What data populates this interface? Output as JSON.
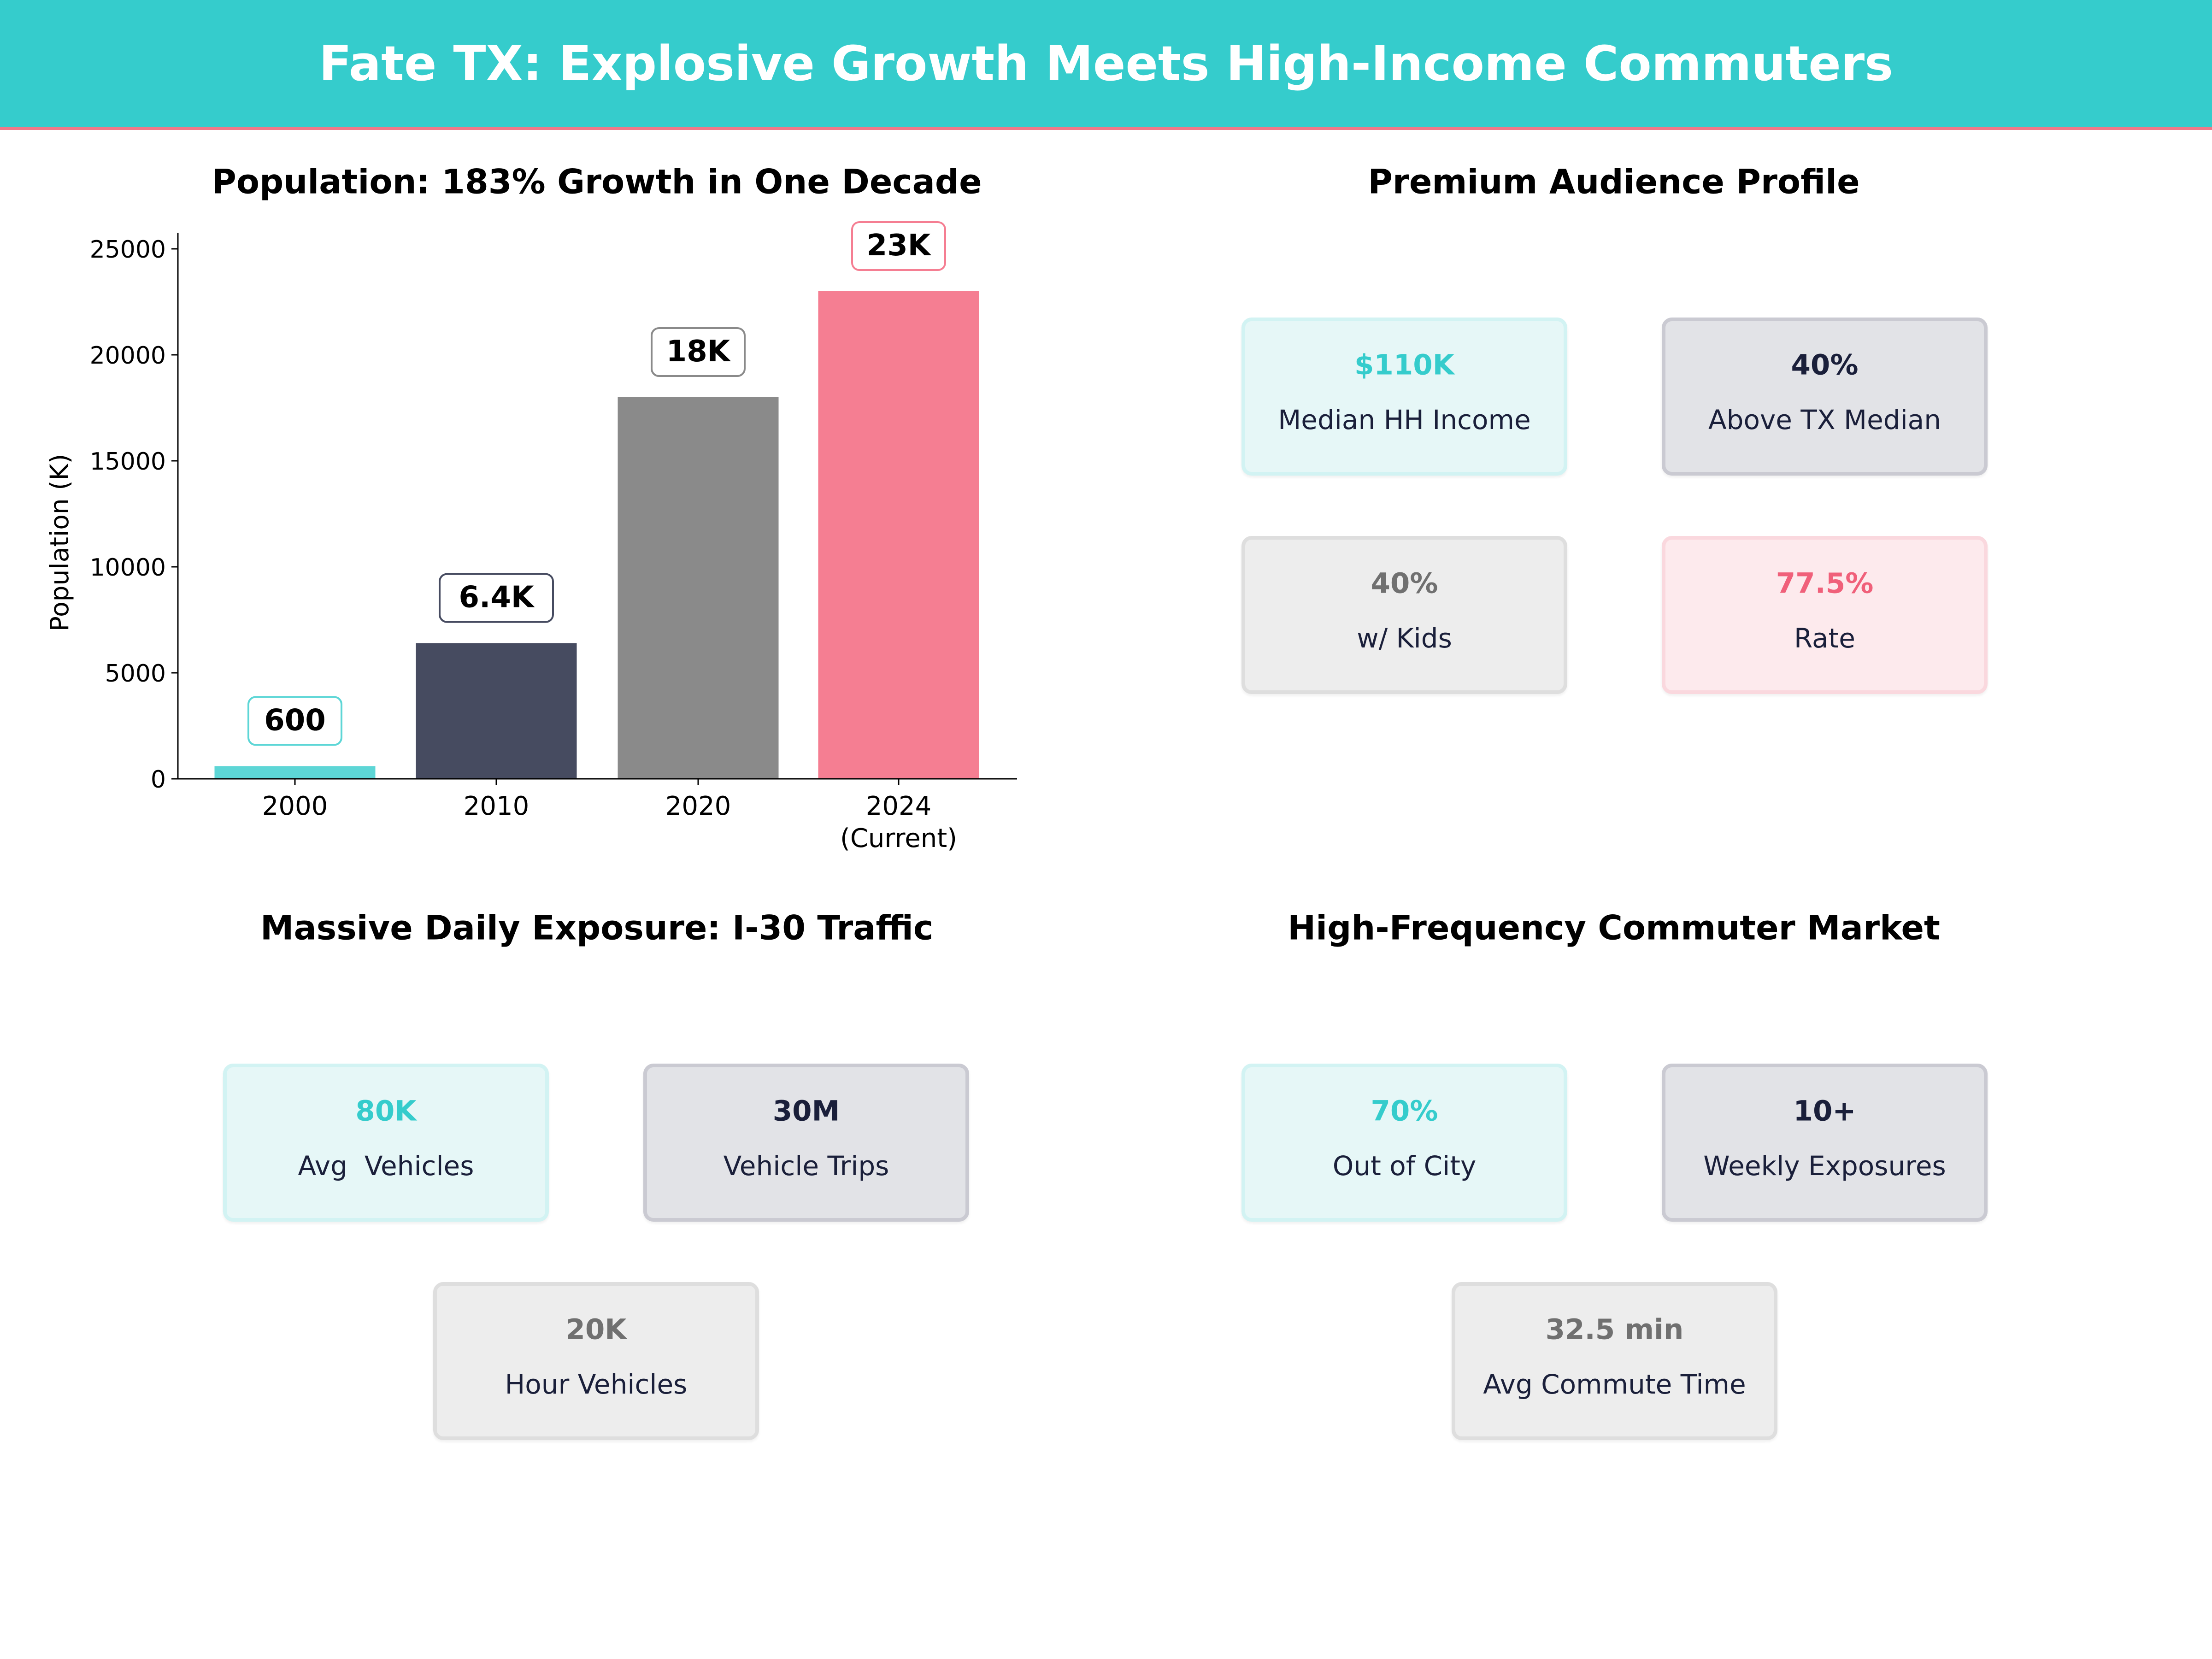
{
  "header": {
    "title": "Fate TX: Explosive Growth Meets High-Income Commuters"
  },
  "colors": {
    "accent": "#35CCCC",
    "navy": "#464B60",
    "grey": "#8A8A8A",
    "pink": "#F57E92"
  },
  "chart_data": {
    "type": "bar",
    "title": "Population: 183% Growth in One Decade",
    "xlabel": "",
    "ylabel": "Population (K)",
    "categories": [
      "2000",
      "2010",
      "2020",
      "2024\n(Current)"
    ],
    "values": [
      600,
      6400,
      18000,
      23000
    ],
    "data_labels": [
      "600",
      "6.4K",
      "18K",
      "23K"
    ],
    "bar_colors": [
      "#5DD6D6",
      "#464B60",
      "#8A8A8A",
      "#F57E92"
    ],
    "ylim": [
      0,
      25760
    ],
    "yticks": [
      0,
      5000,
      10000,
      15000,
      20000,
      25000
    ],
    "grid": false
  },
  "sections": [
    {
      "title": "Premium Audience Profile",
      "cards": [
        {
          "value": "$110K",
          "label": "Median HH Income",
          "style": "teal"
        },
        {
          "value": "40%",
          "label": "Above TX Median",
          "style": "navy"
        },
        {
          "value": "40%",
          "label": "w/ Kids",
          "style": "grey"
        },
        {
          "value": "77.5%",
          "label": "Rate",
          "style": "pink"
        }
      ]
    },
    {
      "title": "Massive Daily Exposure: I-30 Traffic",
      "cards": [
        {
          "value": "80K",
          "label": "Avg  Vehicles",
          "style": "teal"
        },
        {
          "value": "30M",
          "label": "Vehicle Trips",
          "style": "navy"
        },
        {
          "value": "20K",
          "label": "Hour Vehicles",
          "style": "grey"
        }
      ]
    },
    {
      "title": "High-Frequency Commuter Market",
      "cards": [
        {
          "value": "70%",
          "label": "Out of City",
          "style": "teal"
        },
        {
          "value": "10+",
          "label": "Weekly Exposures",
          "style": "navy"
        },
        {
          "value": "32.5 min",
          "label": "Avg Commute Time",
          "style": "grey"
        }
      ]
    }
  ]
}
